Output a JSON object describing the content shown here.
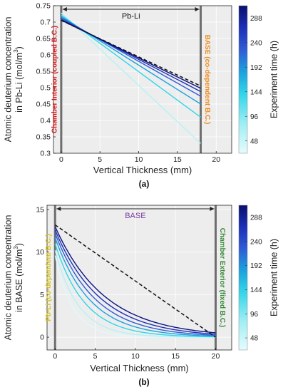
{
  "chart_data": [
    {
      "type": "line",
      "caption": "(a)",
      "xlabel": "Vertical Thickness (mm)",
      "ylabel_line1": "Atomic deuterium concentration",
      "ylabel_line2_prefix": "in Pb-Li (mol/m",
      "ylabel_line2_sup": "3",
      "ylabel_line2_suffix": ")",
      "xlim": [
        -1,
        22
      ],
      "ylim": [
        0.3,
        0.75
      ],
      "xticks": [
        "0",
        "5",
        "10",
        "15",
        "20"
      ],
      "xtick_values": [
        0,
        5,
        10,
        15,
        20
      ],
      "yticks": [
        "0.3",
        "0.35",
        "0.4",
        "0.45",
        "0.5",
        "0.55",
        "0.6",
        "0.65",
        "0.7",
        "0.75"
      ],
      "ytick_values": [
        0.3,
        0.35,
        0.4,
        0.45,
        0.5,
        0.55,
        0.6,
        0.65,
        0.7,
        0.75
      ],
      "grid": true,
      "region_label": "Pb-Li",
      "region_x": [
        0,
        18
      ],
      "left_boundary_label": "Chamber Interior (coupled B.C.)",
      "left_boundary_color": "#d7191c",
      "right_boundary_label": "BASE (co-dependent B.C.)",
      "right_boundary_color": "#f08c1e",
      "colorbar_label": "Experiment time (h)",
      "colorbar_ticks": [
        "48",
        "96",
        "144",
        "192",
        "240",
        "288"
      ],
      "colorbar_tick_values": [
        48,
        96,
        144,
        192,
        240,
        288
      ],
      "colorbar_range": [
        24,
        312
      ],
      "reference_line": {
        "style": "dashed",
        "x": [
          0,
          18
        ],
        "y": [
          0.705,
          0.505
        ]
      },
      "series": [
        {
          "time": 48,
          "color": "#b4f2f6",
          "x": [
            0,
            18
          ],
          "y": [
            0.728,
            0.33
          ]
        },
        {
          "time": 96,
          "color": "#2fd6ea",
          "x": [
            0,
            18
          ],
          "y": [
            0.722,
            0.41
          ]
        },
        {
          "time": 144,
          "color": "#1aa2de",
          "x": [
            0,
            18
          ],
          "y": [
            0.717,
            0.45
          ]
        },
        {
          "time": 192,
          "color": "#2f5cd6",
          "x": [
            0,
            18
          ],
          "y": [
            0.713,
            0.474
          ]
        },
        {
          "time": 240,
          "color": "#1c2fb8",
          "x": [
            0,
            18
          ],
          "y": [
            0.709,
            0.488
          ]
        },
        {
          "time": 288,
          "color": "#0d1380",
          "x": [
            0,
            18
          ],
          "y": [
            0.706,
            0.498
          ]
        }
      ]
    },
    {
      "type": "line",
      "caption": "(b)",
      "xlabel": "Vertical Thickness (mm)",
      "ylabel_line1": "Atomic deuterium concentration",
      "ylabel_line2_prefix": "in BASE (mol/m",
      "ylabel_line2_sup": "3",
      "ylabel_line2_suffix": ")",
      "xlim": [
        -1,
        22
      ],
      "ylim": [
        -1.5,
        15.5
      ],
      "xticks": [
        "0",
        "5",
        "10",
        "15",
        "20"
      ],
      "xtick_values": [
        0,
        5,
        10,
        15,
        20
      ],
      "yticks": [
        "0",
        "5",
        "10",
        "15"
      ],
      "ytick_values": [
        0,
        5,
        10,
        15
      ],
      "grid": true,
      "region_label": "BASE",
      "region_label_color": "#7b3fa0",
      "region_x": [
        0,
        20
      ],
      "left_boundary_label": "Pb-Li (co-dependent B.C.)",
      "left_boundary_color": "#d8c21a",
      "right_boundary_label": "Chamber Exterior (fixed B.C.)",
      "right_boundary_color": "#3a8a3a",
      "colorbar_label": "Experiment time (h)",
      "colorbar_ticks": [
        "48",
        "96",
        "144",
        "192",
        "240",
        "288"
      ],
      "colorbar_tick_values": [
        48,
        96,
        144,
        192,
        240,
        288
      ],
      "colorbar_range": [
        24,
        312
      ],
      "reference_line": {
        "style": "dashed",
        "x": [
          0,
          20
        ],
        "y": [
          13.2,
          0
        ]
      },
      "series": [
        {
          "time": 24,
          "color": "#dff9fb",
          "c0": 9.6,
          "L": 2.2
        },
        {
          "time": 48,
          "color": "#b4f2f6",
          "c0": 10.2,
          "L": 2.9
        },
        {
          "time": 96,
          "color": "#2fd6ea",
          "c0": 11.0,
          "L": 3.7
        },
        {
          "time": 144,
          "color": "#1aa2de",
          "c0": 11.7,
          "L": 4.4
        },
        {
          "time": 192,
          "color": "#2f5cd6",
          "c0": 12.2,
          "L": 5.0
        },
        {
          "time": 240,
          "color": "#1c2fb8",
          "c0": 12.6,
          "L": 5.6
        },
        {
          "time": 288,
          "color": "#0d1380",
          "c0": 13.0,
          "L": 6.2
        }
      ]
    }
  ]
}
